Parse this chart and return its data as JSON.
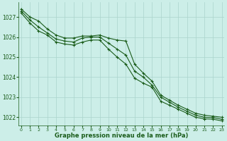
{
  "x": [
    0,
    1,
    2,
    3,
    4,
    5,
    6,
    7,
    8,
    9,
    10,
    11,
    12,
    13,
    14,
    15,
    16,
    17,
    18,
    19,
    20,
    21,
    22,
    23
  ],
  "line1": [
    1027.4,
    1027.0,
    1026.8,
    1026.4,
    1026.1,
    1025.95,
    1025.95,
    1026.05,
    1026.05,
    1026.1,
    1025.95,
    1025.85,
    1025.8,
    1024.65,
    1024.2,
    1023.8,
    1023.1,
    1022.85,
    1022.6,
    1022.4,
    1022.2,
    1022.1,
    1022.05,
    1022.0
  ],
  "line2": [
    1027.3,
    1026.85,
    1026.5,
    1026.2,
    1025.9,
    1025.8,
    1025.75,
    1025.95,
    1026.0,
    1026.0,
    1025.7,
    1025.4,
    1025.1,
    1024.3,
    1024.0,
    1023.6,
    1023.0,
    1022.75,
    1022.5,
    1022.3,
    1022.1,
    1022.0,
    1021.98,
    1021.9
  ],
  "line3": [
    1027.2,
    1026.7,
    1026.3,
    1026.1,
    1025.75,
    1025.65,
    1025.6,
    1025.75,
    1025.85,
    1025.85,
    1025.4,
    1025.0,
    1024.65,
    1023.95,
    1023.7,
    1023.5,
    1022.8,
    1022.6,
    1022.4,
    1022.2,
    1022.0,
    1021.92,
    1021.9,
    1021.82
  ],
  "line_color": "#1a5c1a",
  "bg_color": "#cceee8",
  "grid_color": "#aad4cc",
  "xlabel": "Graphe pression niveau de la mer (hPa)",
  "xlabel_color": "#1a5c1a",
  "tick_color": "#1a5c1a",
  "ylim_min": 1021.6,
  "ylim_max": 1027.75,
  "yticks": [
    1022,
    1023,
    1024,
    1025,
    1026,
    1027
  ],
  "xticks": [
    0,
    1,
    2,
    3,
    4,
    5,
    6,
    7,
    8,
    9,
    10,
    11,
    12,
    13,
    14,
    15,
    16,
    17,
    18,
    19,
    20,
    21,
    22,
    23
  ]
}
